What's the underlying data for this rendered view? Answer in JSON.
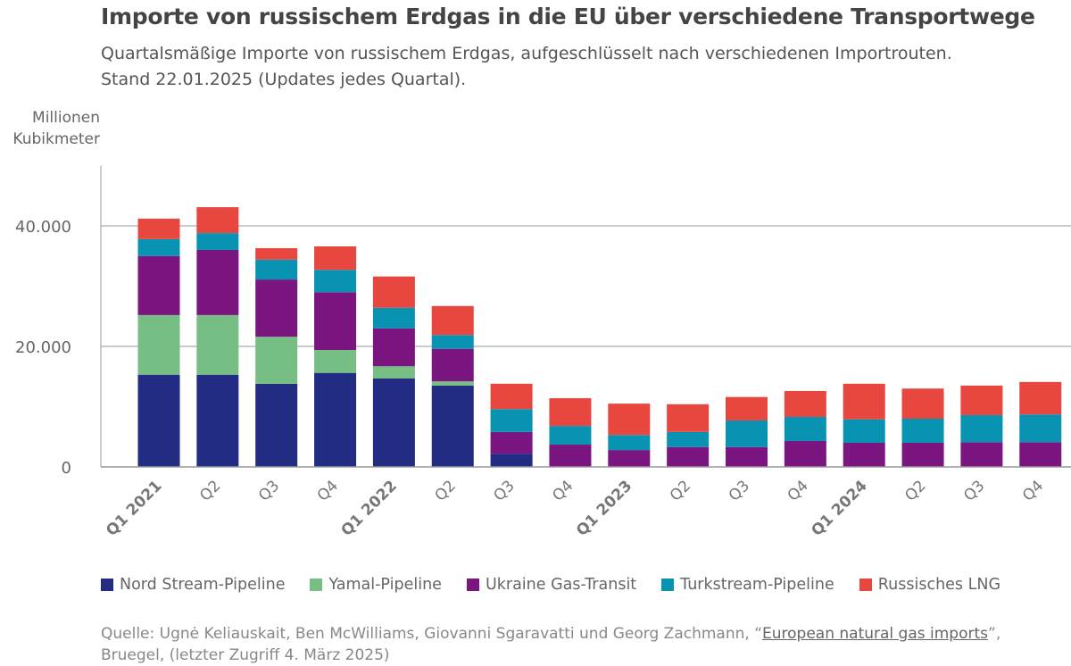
{
  "title": "Importe von russischem Erdgas in die EU über verschiedene Transportwege",
  "subtitle_line1": "Quartalsmäßige Importe von russischem Erdgas, aufgeschlüsselt nach verschiedenen Importrouten.",
  "subtitle_line2": "Stand 22.01.2025 (Updates jedes Quartal).",
  "source": {
    "prefix": "Quelle: Ugnė Keliauskait, Ben McWilliams, Giovanni Sgaravatti und Georg Zachmann, “",
    "link": "European natural gas imports",
    "suffix": "”,",
    "line2": "Bruegel, (letzter Zugriff 4. März 2025)"
  },
  "chart_data": {
    "type": "bar",
    "stacked": true,
    "ylabel_line1": "Millionen",
    "ylabel_line2": "Kubikmeter",
    "ylim": [
      0,
      50000
    ],
    "yticks": [
      {
        "v": 0,
        "label": "0"
      },
      {
        "v": 20000,
        "label": "20.000"
      },
      {
        "v": 40000,
        "label": "40.000"
      }
    ],
    "grid": true,
    "legend_position": "bottom",
    "categories": [
      "Q1 2021",
      "Q2",
      "Q3",
      "Q4",
      "Q1 2022",
      "Q2",
      "Q3",
      "Q4",
      "Q1 2023",
      "Q2",
      "Q3",
      "Q4",
      "Q1 2024",
      "Q2",
      "Q3",
      "Q4"
    ],
    "bold_categories": [
      "Q1 2021",
      "Q1 2022",
      "Q1 2023",
      "Q1 2024"
    ],
    "series": [
      {
        "name": "Nord Stream-Pipeline",
        "color": "#232c83",
        "values": [
          15300,
          15300,
          13800,
          15600,
          14700,
          13500,
          2200,
          0,
          0,
          0,
          0,
          0,
          0,
          0,
          0,
          0
        ]
      },
      {
        "name": "Yamal-Pipeline",
        "color": "#76be83",
        "values": [
          9900,
          9900,
          7800,
          3800,
          2000,
          700,
          0,
          0,
          0,
          0,
          0,
          0,
          0,
          0,
          0,
          0
        ]
      },
      {
        "name": "Ukraine Gas-Transit",
        "color": "#7b1680",
        "values": [
          9800,
          10800,
          9500,
          9600,
          6300,
          5400,
          3600,
          3700,
          2800,
          3300,
          3300,
          4300,
          4000,
          4000,
          4100,
          4100
        ]
      },
      {
        "name": "Turkstream-Pipeline",
        "color": "#0893b3",
        "values": [
          2800,
          2800,
          3300,
          3700,
          3400,
          2300,
          3800,
          3100,
          2500,
          2500,
          4400,
          4000,
          3900,
          4000,
          4500,
          4600
        ]
      },
      {
        "name": "Russisches LNG",
        "color": "#e8473f",
        "values": [
          3400,
          4300,
          1900,
          3900,
          5200,
          4800,
          4200,
          4600,
          5200,
          4600,
          3900,
          4300,
          5900,
          5000,
          4900,
          5400
        ]
      }
    ]
  }
}
